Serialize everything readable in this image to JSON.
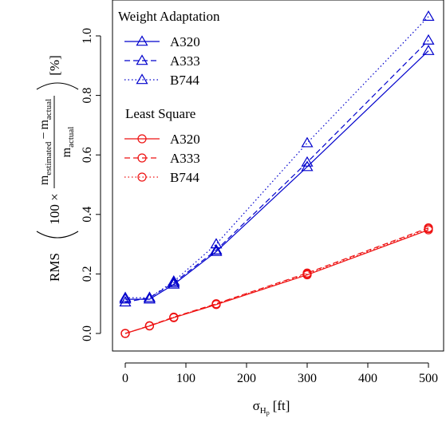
{
  "chart_data": {
    "type": "line",
    "title": "",
    "xlabel": {
      "main": "σ",
      "sub": "H",
      "subsub": "p",
      "unit": "[ft]"
    },
    "ylabel": {
      "prefix": "RMS",
      "factor": "100 ×",
      "numerator": {
        "a": "m",
        "a_sub": "estimated",
        "op": "−",
        "b": "m",
        "b_sub": "actual"
      },
      "denominator": {
        "a": "m",
        "a_sub": "actual"
      },
      "unit": "[%]"
    },
    "xlim": [
      0,
      500
    ],
    "ylim": [
      0,
      1.08
    ],
    "xticks": [
      0,
      100,
      200,
      300,
      400,
      500
    ],
    "xtick_labels": [
      "0",
      "100",
      "200",
      "300",
      "400",
      "500"
    ],
    "yticks": [
      0.0,
      0.2,
      0.4,
      0.6,
      0.8,
      1.0
    ],
    "ytick_labels": [
      "0.0",
      "0.2",
      "0.4",
      "0.6",
      "0.8",
      "1.0"
    ],
    "grid": false,
    "legend_position": "top-left",
    "x": [
      0,
      40,
      80,
      150,
      300,
      500
    ],
    "groups": [
      {
        "title": "Weight Adaptation",
        "color": "#0000cc",
        "marker": "triangle",
        "series": [
          {
            "name": "A320",
            "linestyle": "solid",
            "values": [
              0.115,
              0.115,
              0.165,
              0.275,
              0.56,
              0.95
            ]
          },
          {
            "name": "A333",
            "linestyle": "dashed",
            "values": [
              0.105,
              0.12,
              0.17,
              0.28,
              0.575,
              0.985
            ]
          },
          {
            "name": "B744",
            "linestyle": "dotted",
            "values": [
              0.12,
              0.12,
              0.175,
              0.3,
              0.64,
              1.065
            ]
          }
        ]
      },
      {
        "title": "Least Square",
        "color": "#ee1111",
        "marker": "circle",
        "series": [
          {
            "name": "A320",
            "linestyle": "solid",
            "values": [
              0.0,
              0.025,
              0.053,
              0.097,
              0.197,
              0.348
            ]
          },
          {
            "name": "A333",
            "linestyle": "dashed",
            "values": [
              0.0,
              0.026,
              0.055,
              0.1,
              0.203,
              0.355
            ]
          },
          {
            "name": "B744",
            "linestyle": "dotted",
            "values": [
              0.0,
              0.026,
              0.054,
              0.099,
              0.2,
              0.352
            ]
          }
        ]
      }
    ]
  }
}
